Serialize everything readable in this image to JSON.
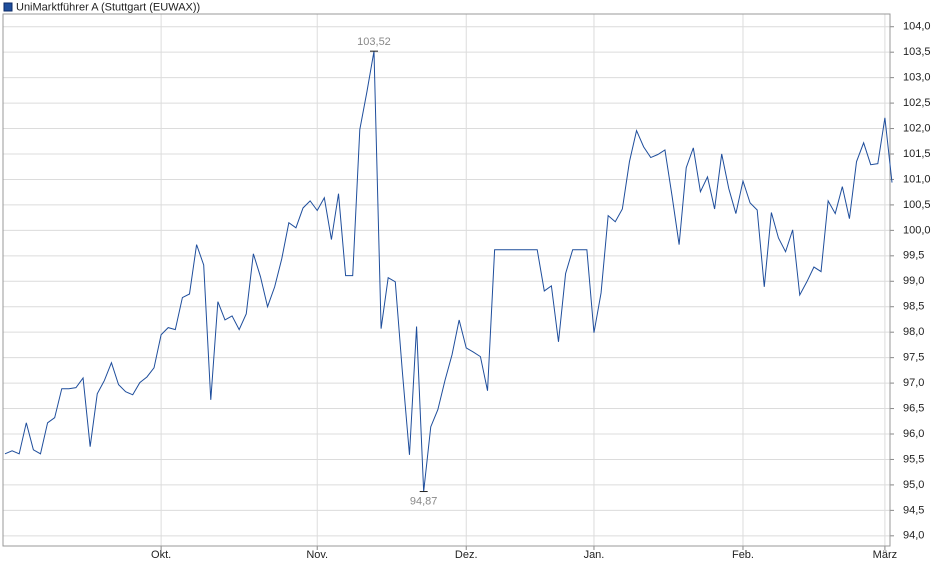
{
  "chart_data": {
    "type": "line",
    "legend": "UniMarktführer A (Stuttgart (EUWAX))",
    "series": [
      {
        "name": "UniMarktführer A (Stuttgart (EUWAX))",
        "color": "#1f4e9c",
        "values": [
          95.61,
          95.67,
          95.61,
          96.22,
          95.69,
          95.61,
          96.22,
          96.32,
          96.89,
          96.89,
          96.91,
          97.1,
          95.75,
          96.79,
          97.05,
          97.4,
          96.97,
          96.83,
          96.77,
          97.01,
          97.12,
          97.3,
          97.95,
          98.09,
          98.05,
          98.68,
          98.75,
          99.72,
          99.32,
          96.67,
          98.6,
          98.24,
          98.32,
          98.05,
          98.36,
          99.54,
          99.09,
          98.5,
          98.89,
          99.44,
          100.15,
          100.05,
          100.44,
          100.58,
          100.39,
          100.64,
          99.82,
          100.72,
          99.11,
          99.11,
          101.98,
          102.72,
          103.52,
          98.07,
          99.07,
          98.99,
          97.22,
          95.59,
          98.11,
          94.87,
          96.14,
          96.48,
          97.05,
          97.56,
          98.24,
          97.69,
          97.61,
          97.52,
          96.85,
          99.62,
          99.62,
          99.62,
          99.62,
          99.62,
          99.62,
          99.62,
          98.81,
          98.91,
          97.81,
          99.15,
          99.62,
          99.62,
          99.62,
          97.99,
          98.77,
          100.29,
          100.17,
          100.42,
          101.35,
          101.96,
          101.64,
          101.43,
          101.49,
          101.58,
          100.68,
          99.72,
          101.23,
          101.62,
          100.76,
          101.05,
          100.42,
          101.5,
          100.82,
          100.33,
          100.97,
          100.54,
          100.4,
          98.89,
          100.35,
          99.85,
          99.58,
          100.01,
          98.73,
          98.99,
          99.28,
          99.19,
          100.58,
          100.33,
          100.86,
          100.23,
          101.35,
          101.72,
          101.29,
          101.31,
          102.21,
          100.94
        ],
        "value_labels": [
          null,
          null,
          null,
          null,
          null,
          null,
          null,
          null,
          null,
          null,
          null,
          null,
          null,
          null,
          null,
          null,
          null,
          null,
          null,
          null,
          null,
          null,
          null,
          null,
          null,
          null,
          null,
          null,
          null,
          null,
          null,
          null,
          null,
          null,
          null,
          null,
          null,
          null,
          null,
          null,
          null,
          null,
          null,
          null,
          null,
          null,
          null,
          null,
          null,
          null,
          null,
          null,
          "103,52",
          null,
          null,
          null,
          null,
          null,
          null,
          "94,87",
          null,
          null,
          null,
          null,
          null,
          null,
          null,
          null,
          null,
          null,
          null,
          null,
          null,
          null,
          null,
          null,
          null,
          null,
          null,
          null,
          null,
          null,
          null,
          null,
          null,
          null,
          null,
          null,
          null,
          null,
          null,
          null,
          null,
          null,
          null,
          null,
          null,
          null,
          null,
          null,
          null,
          null,
          null,
          null,
          null,
          null,
          null,
          null,
          null,
          null,
          null,
          null,
          null,
          null,
          null,
          null,
          null,
          null,
          null,
          null,
          null,
          null,
          null,
          null,
          null,
          null
        ]
      }
    ],
    "categories": [
      null,
      null,
      null,
      null,
      null,
      null,
      null,
      null,
      null,
      null,
      null,
      null,
      null,
      null,
      null,
      null,
      null,
      null,
      null,
      null,
      null,
      null,
      "Okt.",
      null,
      null,
      null,
      null,
      null,
      null,
      null,
      null,
      null,
      null,
      null,
      null,
      null,
      null,
      null,
      null,
      null,
      null,
      null,
      null,
      null,
      "Nov.",
      null,
      null,
      null,
      null,
      null,
      null,
      null,
      null,
      null,
      null,
      null,
      null,
      null,
      null,
      null,
      null,
      null,
      null,
      null,
      null,
      "Dez.",
      null,
      null,
      null,
      null,
      null,
      null,
      null,
      null,
      null,
      null,
      null,
      null,
      null,
      null,
      null,
      null,
      null,
      "Jan.",
      null,
      null,
      null,
      null,
      null,
      null,
      null,
      null,
      null,
      null,
      null,
      null,
      null,
      null,
      null,
      null,
      null,
      null,
      null,
      null,
      "Feb.",
      null,
      null,
      null,
      null,
      null,
      null,
      null,
      null,
      null,
      null,
      null,
      null,
      null,
      null,
      null,
      null,
      null,
      null,
      null,
      "März",
      null
    ],
    "ylim": [
      93.8,
      104.25
    ],
    "yticks": [
      {
        "value": 94,
        "label": "94,0"
      },
      {
        "value": 94.5,
        "label": "94,5"
      },
      {
        "value": 95,
        "label": "95,0"
      },
      {
        "value": 95.5,
        "label": "95,5"
      },
      {
        "value": 96,
        "label": "96,0"
      },
      {
        "value": 96.5,
        "label": "96,5"
      },
      {
        "value": 97,
        "label": "97,0"
      },
      {
        "value": 97.5,
        "label": "97,5"
      },
      {
        "value": 98,
        "label": "98,0"
      },
      {
        "value": 98.5,
        "label": "98,5"
      },
      {
        "value": 99,
        "label": "99,0"
      },
      {
        "value": 99.5,
        "label": "99,5"
      },
      {
        "value": 100,
        "label": "100,0"
      },
      {
        "value": 100.5,
        "label": "100,5"
      },
      {
        "value": 101,
        "label": "101,0"
      },
      {
        "value": 101.5,
        "label": "101,5"
      },
      {
        "value": 102,
        "label": "102,0"
      },
      {
        "value": 102.5,
        "label": "102,5"
      },
      {
        "value": 103,
        "label": "103,0"
      },
      {
        "value": 103.5,
        "label": "103,5"
      },
      {
        "value": 104,
        "label": "104,0"
      }
    ],
    "grid": true,
    "y_axis_side": "right"
  }
}
